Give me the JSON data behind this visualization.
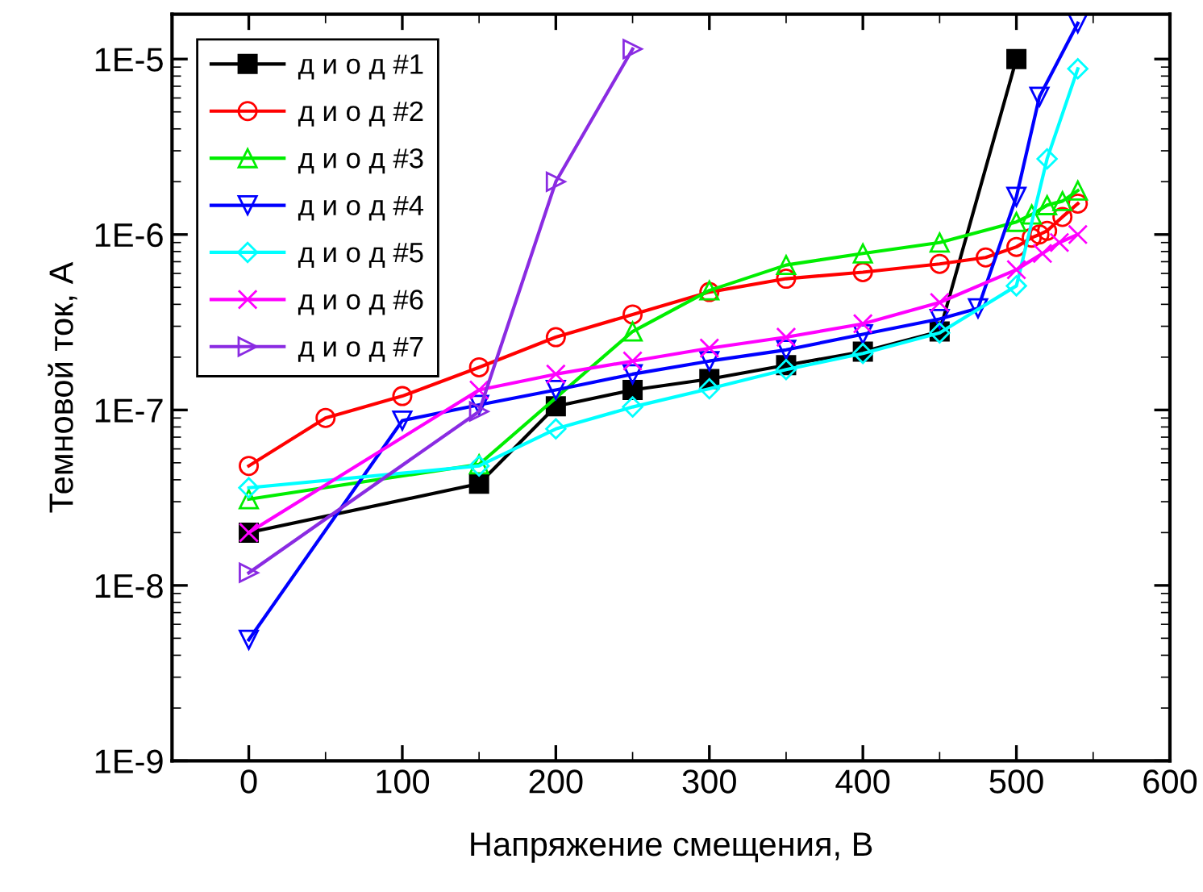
{
  "chart_data": {
    "type": "line",
    "xlabel": "Напряжение смещения, В",
    "ylabel": "Темновой ток, А",
    "log": "y",
    "xlim": [
      -50,
      600
    ],
    "xticks": [
      0,
      100,
      200,
      300,
      400,
      500,
      600
    ],
    "ylim": [
      1e-09,
      1.8e-05
    ],
    "yticks": [
      {
        "value": 1e-09,
        "label": "1E-9"
      },
      {
        "value": 1e-08,
        "label": "1E-8"
      },
      {
        "value": 1e-07,
        "label": "1E-7"
      },
      {
        "value": 1e-06,
        "label": "1E-6"
      },
      {
        "value": 1e-05,
        "label": "1E-5"
      }
    ],
    "grid": false,
    "legend": "top left",
    "line_style": "solid",
    "series": [
      {
        "name": "д и о д #1",
        "color": "#000000",
        "marker": "square",
        "x": [
          0,
          150,
          200,
          250,
          300,
          350,
          400,
          450,
          500
        ],
        "values": [
          2e-08,
          3.8e-08,
          1.05e-07,
          1.3e-07,
          1.5e-07,
          1.8e-07,
          2.15e-07,
          2.8e-07,
          1e-05
        ]
      },
      {
        "name": "д и о д #2",
        "color": "#ff0000",
        "marker": "circle",
        "x": [
          0,
          50,
          100,
          150,
          200,
          250,
          300,
          350,
          400,
          450,
          480,
          500,
          510,
          515,
          520,
          530,
          540
        ],
        "values": [
          4.8e-08,
          9e-08,
          1.2e-07,
          1.75e-07,
          2.6e-07,
          3.5e-07,
          4.7e-07,
          5.6e-07,
          6.1e-07,
          6.8e-07,
          7.4e-07,
          8.5e-07,
          9.6e-07,
          1e-06,
          1.05e-06,
          1.26e-06,
          1.5e-06
        ]
      },
      {
        "name": "д и о д #3",
        "color": "#00ee00",
        "marker": "triangle",
        "x": [
          0,
          150,
          250,
          300,
          350,
          400,
          450,
          500,
          510,
          520,
          530,
          540
        ],
        "values": [
          3.1e-08,
          4.9e-08,
          2.8e-07,
          4.8e-07,
          6.7e-07,
          7.8e-07,
          9e-07,
          1.18e-06,
          1.3e-06,
          1.47e-06,
          1.55e-06,
          1.78e-06
        ]
      },
      {
        "name": "д и о д #4",
        "color": "#0000ff",
        "marker": "triangle_down",
        "x": [
          0,
          100,
          150,
          200,
          250,
          300,
          350,
          400,
          450,
          475,
          500,
          515,
          540
        ],
        "values": [
          4.9e-09,
          8.7e-08,
          1.07e-07,
          1.3e-07,
          1.6e-07,
          1.9e-07,
          2.2e-07,
          2.7e-07,
          3.3e-07,
          3.8e-07,
          1.64e-06,
          6.1e-06,
          1.6e-05
        ]
      },
      {
        "name": "д и о д #5",
        "color": "#00ffff",
        "marker": "diamond",
        "x": [
          0,
          150,
          200,
          250,
          300,
          350,
          400,
          450,
          500,
          520,
          540
        ],
        "values": [
          3.6e-08,
          4.8e-08,
          7.8e-08,
          1.04e-07,
          1.32e-07,
          1.7e-07,
          2.1e-07,
          2.75e-07,
          5.1e-07,
          2.7e-06,
          8.8e-06
        ]
      },
      {
        "name": "д и о д #6",
        "color": "#ff00ff",
        "marker": "cross",
        "x": [
          0,
          150,
          200,
          250,
          300,
          350,
          400,
          450,
          500,
          517,
          528,
          540
        ],
        "values": [
          2e-08,
          1.3e-07,
          1.6e-07,
          1.9e-07,
          2.25e-07,
          2.6e-07,
          3.1e-07,
          4.1e-07,
          6.3e-07,
          7.8e-07,
          9e-07,
          1e-06
        ]
      },
      {
        "name": "д и о д #7",
        "color": "#8a2be2",
        "marker": "triangle_right",
        "x": [
          0,
          150,
          200,
          250
        ],
        "values": [
          1.18e-08,
          9.8e-08,
          2e-06,
          1.14e-05
        ]
      }
    ]
  }
}
